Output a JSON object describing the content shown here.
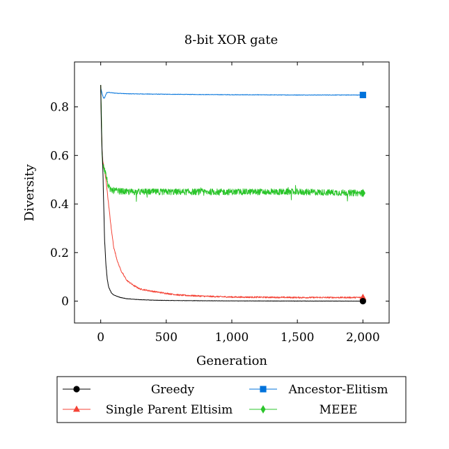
{
  "chart_data": {
    "type": "line",
    "title": "8-bit XOR gate",
    "xlabel": "Generation",
    "ylabel": "Diversity",
    "xlim": [
      -200,
      2200
    ],
    "ylim": [
      -0.09,
      0.985
    ],
    "xticks": [
      0,
      500,
      1000,
      1500,
      2000
    ],
    "xtick_labels": [
      "0",
      "500",
      "1,000",
      "1,500",
      "2,000"
    ],
    "yticks": [
      0,
      0.2,
      0.4,
      0.6,
      0.8
    ],
    "ytick_labels": [
      "0",
      "0.2",
      "0.4",
      "0.6",
      "0.8"
    ],
    "grid": false,
    "legend_placement": "bottom",
    "series": [
      {
        "name": "Greedy",
        "color": "#000000",
        "marker": "circle",
        "noise": 0.004,
        "points": [
          [
            0,
            0.89
          ],
          [
            5,
            0.72
          ],
          [
            10,
            0.62
          ],
          [
            15,
            0.57
          ],
          [
            20,
            0.46
          ],
          [
            25,
            0.35
          ],
          [
            30,
            0.25
          ],
          [
            40,
            0.15
          ],
          [
            50,
            0.09
          ],
          [
            60,
            0.06
          ],
          [
            80,
            0.035
          ],
          [
            100,
            0.025
          ],
          [
            150,
            0.015
          ],
          [
            200,
            0.01
          ],
          [
            300,
            0.006
          ],
          [
            400,
            0.004
          ],
          [
            500,
            0.003
          ],
          [
            700,
            0.002
          ],
          [
            1000,
            0.001
          ],
          [
            2000,
            0.0
          ]
        ]
      },
      {
        "name": "Ancestor-Elitism",
        "color": "#0072db",
        "marker": "square",
        "noise": 0.001,
        "points": [
          [
            0,
            0.88
          ],
          [
            10,
            0.855
          ],
          [
            20,
            0.838
          ],
          [
            28,
            0.835
          ],
          [
            35,
            0.845
          ],
          [
            45,
            0.858
          ],
          [
            60,
            0.86
          ],
          [
            100,
            0.857
          ],
          [
            200,
            0.854
          ],
          [
            500,
            0.852
          ],
          [
            1000,
            0.85
          ],
          [
            1500,
            0.849
          ],
          [
            2000,
            0.849
          ]
        ]
      },
      {
        "name": "Single Parent Eltisim",
        "color": "#f44336",
        "marker": "triangle",
        "noise": 0.003,
        "points": [
          [
            0,
            0.89
          ],
          [
            5,
            0.75
          ],
          [
            10,
            0.62
          ],
          [
            15,
            0.58
          ],
          [
            25,
            0.55
          ],
          [
            40,
            0.5
          ],
          [
            60,
            0.4
          ],
          [
            80,
            0.3
          ],
          [
            100,
            0.22
          ],
          [
            130,
            0.16
          ],
          [
            160,
            0.12
          ],
          [
            200,
            0.085
          ],
          [
            250,
            0.065
          ],
          [
            300,
            0.05
          ],
          [
            400,
            0.04
          ],
          [
            500,
            0.032
          ],
          [
            600,
            0.025
          ],
          [
            800,
            0.02
          ],
          [
            1000,
            0.017
          ],
          [
            1500,
            0.015
          ],
          [
            2000,
            0.015
          ]
        ]
      },
      {
        "name": "MEEE",
        "color": "#2bc52b",
        "marker": "diamond",
        "noise": 0.013,
        "points": [
          [
            0,
            0.89
          ],
          [
            5,
            0.78
          ],
          [
            10,
            0.6
          ],
          [
            15,
            0.56
          ],
          [
            25,
            0.55
          ],
          [
            40,
            0.52
          ],
          [
            55,
            0.48
          ],
          [
            70,
            0.46
          ],
          [
            100,
            0.455
          ],
          [
            200,
            0.45
          ],
          [
            500,
            0.45
          ],
          [
            1000,
            0.45
          ],
          [
            1500,
            0.45
          ],
          [
            2000,
            0.445
          ]
        ]
      }
    ]
  }
}
